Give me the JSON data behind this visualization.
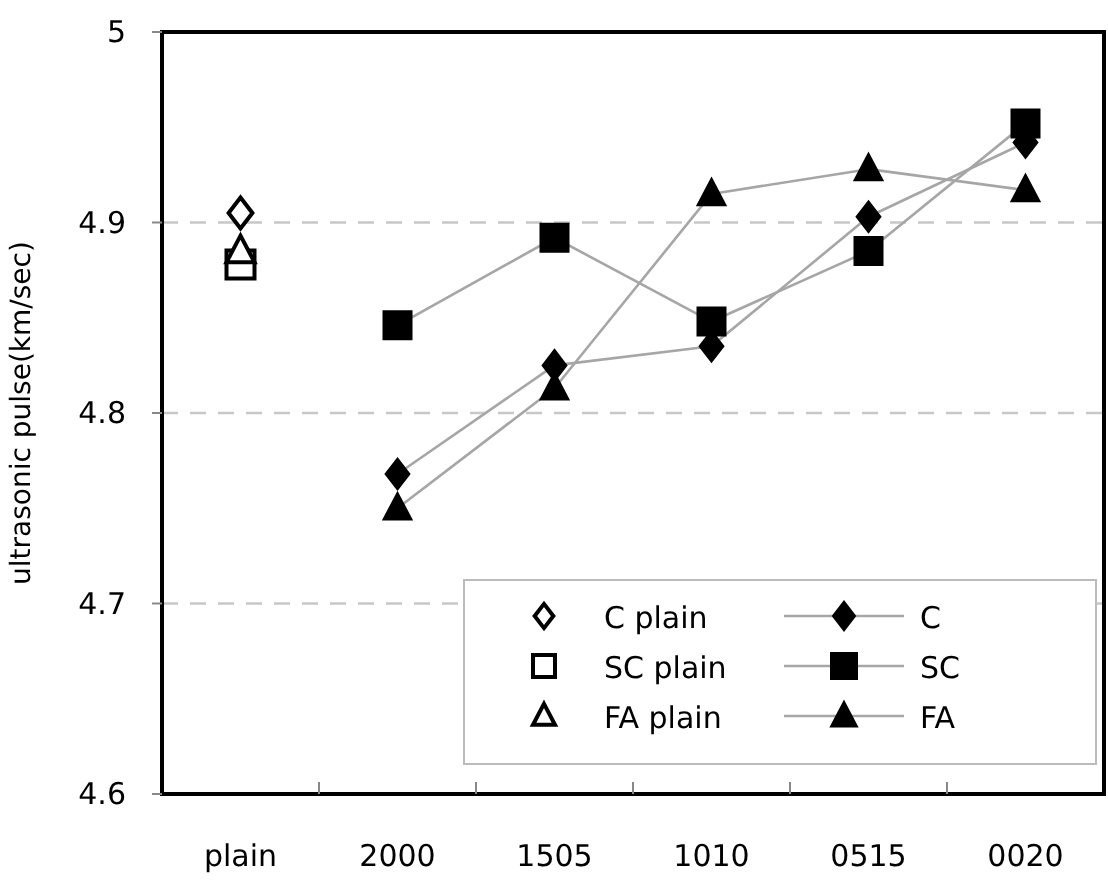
{
  "chart_data": {
    "type": "line",
    "ylabel": "ultrasonic pulse(km/sec)",
    "categories": [
      "plain",
      "2000",
      "1505",
      "1010",
      "0515",
      "0020"
    ],
    "series": [
      {
        "name": "C plain",
        "type": "scatter",
        "marker": "diamond",
        "color": "#000000",
        "values": [
          4.905,
          null,
          null,
          null,
          null,
          null
        ]
      },
      {
        "name": "SC plain",
        "type": "scatter",
        "marker": "square",
        "color": "#000000",
        "values": [
          4.878,
          null,
          null,
          null,
          null,
          null
        ]
      },
      {
        "name": "FA plain",
        "type": "scatter",
        "marker": "triangle",
        "color": "#000000",
        "values": [
          4.885,
          null,
          null,
          null,
          null,
          null
        ]
      },
      {
        "name": "C",
        "type": "line",
        "marker": "diamond",
        "color": "#000000",
        "values": [
          null,
          4.768,
          4.825,
          4.835,
          4.903,
          4.942
        ]
      },
      {
        "name": "SC",
        "type": "line",
        "marker": "square",
        "color": "#000000",
        "values": [
          null,
          4.846,
          4.892,
          4.848,
          4.885,
          4.952
        ]
      },
      {
        "name": "FA",
        "type": "line",
        "marker": "triangle",
        "color": "#000000",
        "values": [
          null,
          4.75,
          4.813,
          4.915,
          4.928,
          4.917
        ]
      }
    ],
    "ylim": [
      4.6,
      5
    ],
    "yticks": [
      4.6,
      4.7,
      4.8,
      4.9,
      5
    ],
    "grid": "y",
    "legend": "bottom right"
  }
}
